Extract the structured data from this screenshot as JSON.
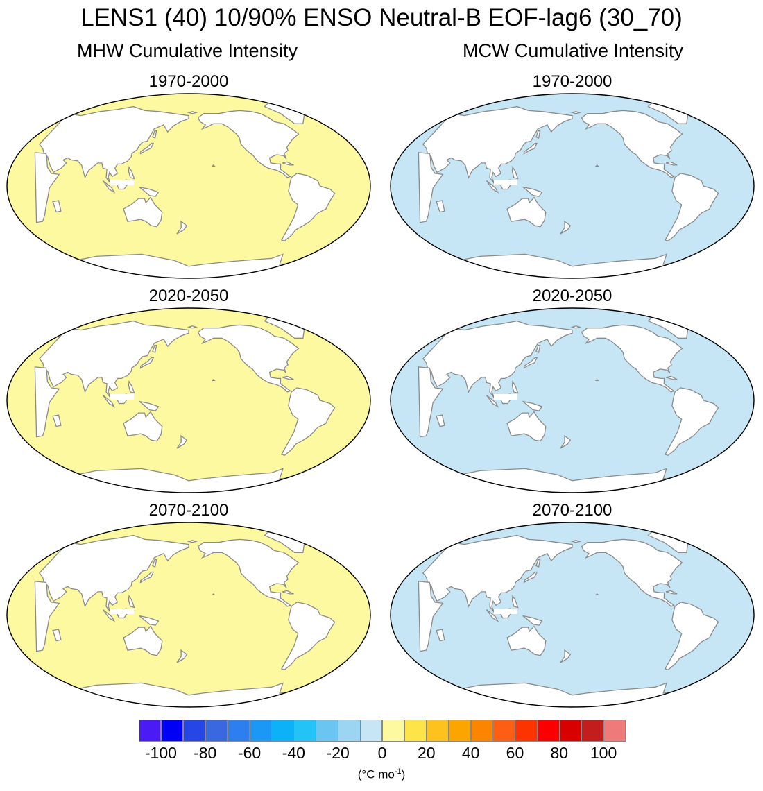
{
  "figure": {
    "title": "LENS1 (40) 10/90% ENSO Neutral-B EOF-lag6 (30_70)",
    "columns": [
      "MHW Cumulative Intensity",
      "MCW Cumulative Intensity"
    ],
    "panels": [
      {
        "period": "1970-2000",
        "column": "MHW",
        "ocean_value": 10,
        "fill": "#fdf9a0"
      },
      {
        "period": "1970-2000",
        "column": "MCW",
        "ocean_value": -10,
        "fill": "#c6e5f5"
      },
      {
        "period": "2020-2050",
        "column": "MHW",
        "ocean_value": 10,
        "fill": "#fdf9a0"
      },
      {
        "period": "2020-2050",
        "column": "MCW",
        "ocean_value": -10,
        "fill": "#c6e5f5"
      },
      {
        "period": "2070-2100",
        "column": "MHW",
        "ocean_value": 10,
        "fill": "#fdf9a0"
      },
      {
        "period": "2070-2100",
        "column": "MCW",
        "ocean_value": -10,
        "fill": "#c6e5f5"
      }
    ]
  },
  "colorbar": {
    "colors": [
      "#4b1bf5",
      "#0000f5",
      "#2646e6",
      "#3a68e0",
      "#2d7ff0",
      "#1b97f6",
      "#0cb1f7",
      "#24c3f7",
      "#6ac6f0",
      "#9bd5f2",
      "#c6e5f5",
      "#fdf9a0",
      "#fde449",
      "#fdc21e",
      "#fca500",
      "#fc8500",
      "#fc5e14",
      "#fb3400",
      "#fb0000",
      "#d80000",
      "#c41d1d",
      "#ef7a7a"
    ],
    "tick_labels": [
      "-100",
      "-80",
      "-60",
      "-40",
      "-20",
      "0",
      "20",
      "40",
      "60",
      "80",
      "100"
    ],
    "units_prefix": "(",
    "units_main": "°C mo",
    "units_sup": "-1",
    "units_suffix": ")"
  }
}
